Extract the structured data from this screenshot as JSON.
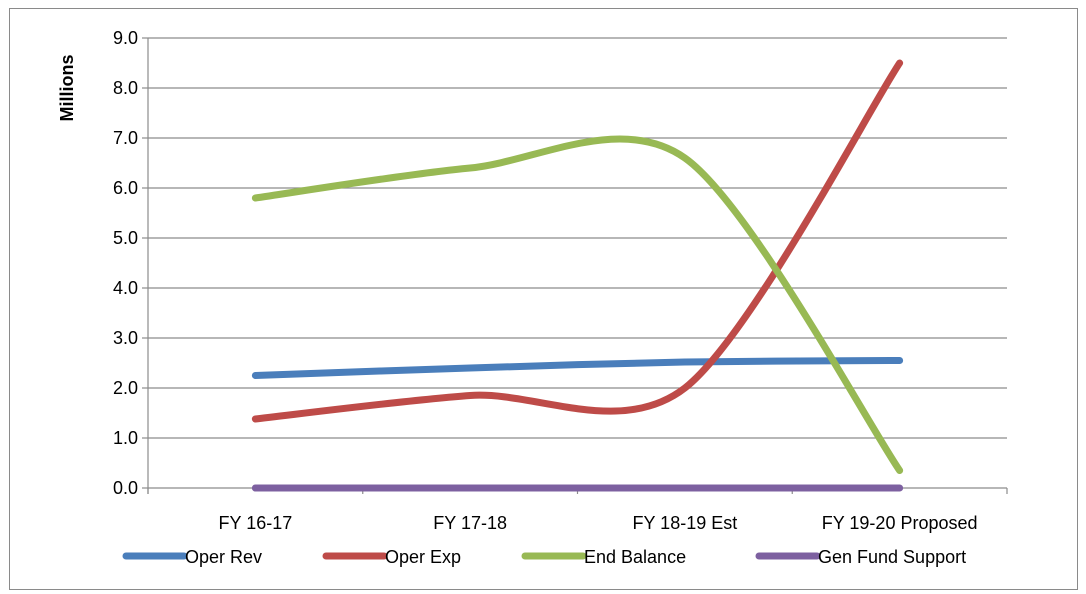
{
  "chart_data": {
    "type": "line",
    "title": "",
    "xlabel": "",
    "ylabel": "Millions",
    "ylim": [
      0,
      9
    ],
    "ytick_step": 1,
    "ytick_labels": [
      "0.0",
      "1.0",
      "2.0",
      "3.0",
      "4.0",
      "5.0",
      "6.0",
      "7.0",
      "8.0",
      "9.0"
    ],
    "grid": "horizontal",
    "legend_position": "bottom",
    "smooth": true,
    "categories": [
      "FY 16-17",
      "FY 17-18",
      "FY 18-19 Est",
      "FY 19-20 Proposed"
    ],
    "series": [
      {
        "name": "Oper Rev",
        "color": "#4a7ebb",
        "values": [
          2.25,
          2.4,
          2.52,
          2.55
        ]
      },
      {
        "name": "Oper Exp",
        "color": "#be4b48",
        "values": [
          1.38,
          1.85,
          2.0,
          8.5
        ]
      },
      {
        "name": "End Balance",
        "color": "#98b954",
        "values": [
          5.8,
          6.4,
          6.6,
          0.35
        ]
      },
      {
        "name": "Gen Fund Support",
        "color": "#7d60a0",
        "values": [
          0,
          0,
          0,
          0
        ]
      }
    ]
  }
}
